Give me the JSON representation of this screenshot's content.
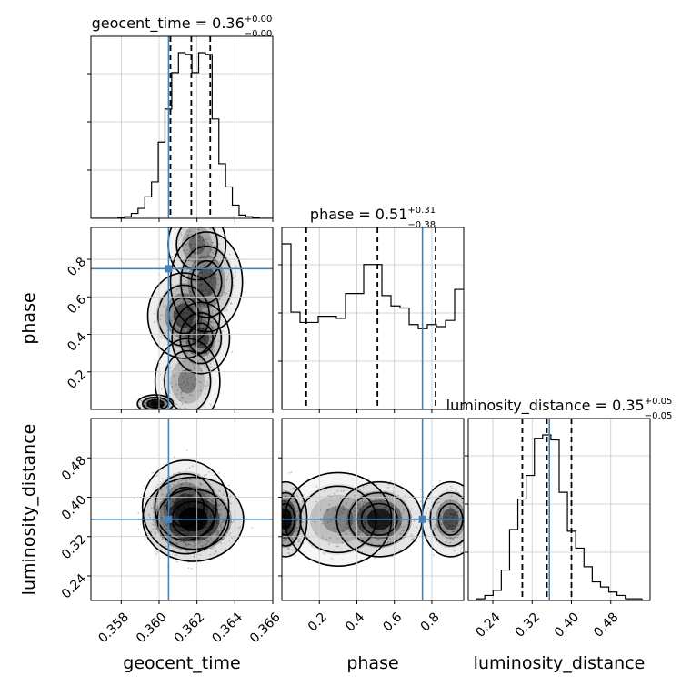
{
  "chart_data": {
    "type": "corner",
    "parameters": [
      "geocent_time",
      "phase",
      "luminosity_distance"
    ],
    "axis_labels": {
      "geocent_time": "geocent_time",
      "phase": "phase",
      "luminosity_distance": "luminosity_distance"
    },
    "ranges": {
      "geocent_time": [
        0.3564,
        0.366
      ],
      "phase": [
        0.0,
        0.97
      ],
      "luminosity_distance": [
        0.19,
        0.56
      ]
    },
    "x_ticks": {
      "geocent_time": [
        "0.358",
        "0.360",
        "0.362",
        "0.364",
        "0.366"
      ],
      "phase": [
        "0.2",
        "0.4",
        "0.6",
        "0.8"
      ],
      "luminosity_distance": [
        "0.24",
        "0.32",
        "0.40",
        "0.48"
      ]
    },
    "y_ticks": {
      "phase": [
        "0.2",
        "0.4",
        "0.6",
        "0.8"
      ],
      "luminosity_distance": [
        "0.24",
        "0.32",
        "0.40",
        "0.48"
      ]
    },
    "titles": {
      "geocent_time": {
        "main": "geocent_time = 0.36",
        "plus": "+0.00",
        "minus": "−0.00"
      },
      "phase": {
        "main": "phase = 0.51",
        "plus": "+0.31",
        "minus": "−0.38"
      },
      "luminosity_distance": {
        "main": "luminosity_distance = 0.35",
        "plus": "+0.05",
        "minus": "−0.05"
      }
    },
    "truths": {
      "geocent_time": 0.3605,
      "phase": 0.75,
      "luminosity_distance": 0.355
    },
    "quantiles": {
      "geocent_time": [
        0.3606,
        0.3617,
        0.3627
      ],
      "phase": [
        0.13,
        0.51,
        0.82
      ],
      "luminosity_distance": [
        0.3,
        0.35,
        0.4
      ]
    },
    "histograms": {
      "geocent_time": {
        "edges_min": 0.3564,
        "edges_max": 0.366,
        "counts": [
          0,
          0,
          0,
          0,
          0.5,
          1,
          3,
          6,
          13,
          22,
          46,
          66,
          88,
          100,
          99,
          88,
          100,
          99,
          60,
          33,
          19,
          8,
          2,
          1,
          0.5,
          0,
          0
        ]
      },
      "phase": {
        "edges_min": 0.0,
        "edges_max": 0.97,
        "counts": [
          80,
          47,
          42,
          42,
          45,
          45,
          44,
          56,
          56,
          70,
          70,
          55,
          50,
          49,
          41,
          39,
          41,
          40,
          43,
          58
        ]
      },
      "luminosity_distance": {
        "edges_min": 0.19,
        "edges_max": 0.56,
        "counts": [
          0,
          1,
          3,
          6,
          18,
          42,
          60,
          74,
          96,
          98,
          95,
          64,
          41,
          31,
          20,
          11,
          8,
          5,
          3,
          1,
          1,
          0
        ]
      }
    },
    "density_2d": [
      {
        "x": "geocent_time",
        "y": "phase",
        "blobs": [
          {
            "x": 0.3598,
            "y": 0.03,
            "w": 0.0005,
            "h": 0.025,
            "level": 1.0
          },
          {
            "x": 0.3615,
            "y": 0.15,
            "w": 0.0009,
            "h": 0.12,
            "level": 0.35
          },
          {
            "x": 0.3622,
            "y": 0.38,
            "w": 0.0008,
            "h": 0.1,
            "level": 0.55
          },
          {
            "x": 0.3613,
            "y": 0.5,
            "w": 0.001,
            "h": 0.12,
            "level": 0.55
          },
          {
            "x": 0.3625,
            "y": 0.68,
            "w": 0.001,
            "h": 0.14,
            "level": 0.5
          },
          {
            "x": 0.362,
            "y": 0.88,
            "w": 0.0008,
            "h": 0.1,
            "level": 0.4
          }
        ]
      },
      {
        "x": "geocent_time",
        "y": "luminosity_distance",
        "blobs": [
          {
            "x": 0.3618,
            "y": 0.355,
            "w": 0.0014,
            "h": 0.045,
            "level": 1.0
          },
          {
            "x": 0.3614,
            "y": 0.38,
            "w": 0.0012,
            "h": 0.05,
            "level": 0.5
          }
        ]
      },
      {
        "x": "phase",
        "y": "luminosity_distance",
        "blobs": [
          {
            "x": 0.02,
            "y": 0.355,
            "w": 0.06,
            "h": 0.04,
            "level": 1.0
          },
          {
            "x": 0.52,
            "y": 0.355,
            "w": 0.12,
            "h": 0.04,
            "level": 0.85
          },
          {
            "x": 0.9,
            "y": 0.355,
            "w": 0.08,
            "h": 0.04,
            "level": 0.55
          },
          {
            "x": 0.3,
            "y": 0.355,
            "w": 0.15,
            "h": 0.05,
            "level": 0.3
          }
        ]
      }
    ],
    "contour_levels": 3,
    "grid": true,
    "colors": {
      "truth": "#4682b4",
      "hist": "#000000",
      "density": "#000000"
    }
  }
}
